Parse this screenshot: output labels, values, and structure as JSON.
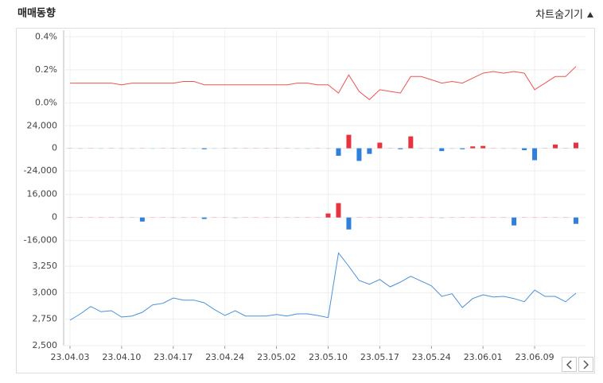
{
  "header": {
    "title": "매매동향",
    "toggle": "차트숨기기"
  },
  "chart_data": [
    {
      "type": "line",
      "color": "#ef5350",
      "values": [
        0.12,
        0.12,
        0.12,
        0.12,
        0.12,
        0.11,
        0.12,
        0.12,
        0.12,
        0.12,
        0.12,
        0.13,
        0.13,
        0.11,
        0.11,
        0.11,
        0.11,
        0.11,
        0.11,
        0.11,
        0.11,
        0.11,
        0.12,
        0.12,
        0.11,
        0.11,
        0.06,
        0.17,
        0.07,
        0.02,
        0.08,
        0.07,
        0.06,
        0.16,
        0.16,
        0.14,
        0.12,
        0.13,
        0.12,
        0.15,
        0.18,
        0.19,
        0.18,
        0.19,
        0.18,
        0.08,
        0.12,
        0.16,
        0.16,
        0.22
      ],
      "ylim": [
        -0.05,
        0.43
      ],
      "yticks": [
        {
          "value": 0.4,
          "label": "0.4%"
        },
        {
          "value": 0.2,
          "label": "0.2%"
        },
        {
          "value": 0.0,
          "label": "0.0%"
        }
      ],
      "grid": true
    },
    {
      "type": "bar",
      "positive_color": "#e8333f",
      "negative_color": "#2f7fdc",
      "values": [
        200,
        -200,
        0,
        -200,
        0,
        -200,
        -200,
        0,
        -200,
        0,
        200,
        0,
        -200,
        -1000,
        -200,
        0,
        0,
        0,
        0,
        0,
        0,
        0,
        -200,
        -200,
        0,
        -200,
        -8000,
        14400,
        -13500,
        -6000,
        6000,
        0,
        -1000,
        12700,
        -500,
        -500,
        -3000,
        -500,
        -1000,
        2000,
        2500,
        500,
        -500,
        -500,
        -2000,
        -12700,
        0,
        4000,
        0,
        6000
      ],
      "ylim": [
        -30000,
        31000
      ],
      "yticks": [
        {
          "value": 24000,
          "label": "24,000"
        },
        0,
        {
          "value": -24000,
          "label": "-24,000"
        }
      ],
      "grid": true
    },
    {
      "type": "bar",
      "positive_color": "#e8333f",
      "negative_color": "#2f7fdc",
      "values": [
        0,
        0,
        0,
        0,
        0,
        0,
        0,
        -2800,
        0,
        0,
        0,
        0,
        0,
        -1000,
        0,
        0,
        -500,
        0,
        0,
        0,
        0,
        0,
        0,
        200,
        200,
        2800,
        10000,
        -8300,
        0,
        0,
        0,
        0,
        0,
        0,
        0,
        0,
        -500,
        0,
        0,
        0,
        0,
        0,
        0,
        -5500,
        0,
        0,
        0,
        0,
        0,
        -4400
      ],
      "ylim": [
        -20000,
        23000
      ],
      "yticks": [
        {
          "value": 16000,
          "label": "16,000"
        },
        0,
        {
          "value": -16000,
          "label": "-16,000"
        }
      ],
      "grid": true
    },
    {
      "type": "line",
      "color": "#4a90d9",
      "categories": [
        "23.04.03",
        null,
        null,
        null,
        null,
        "23.04.10",
        null,
        null,
        null,
        null,
        "23.04.17",
        null,
        null,
        null,
        null,
        "23.04.24",
        null,
        null,
        null,
        null,
        "23.05.02",
        null,
        null,
        null,
        null,
        "23.05.10",
        null,
        null,
        null,
        null,
        "23.05.17",
        null,
        null,
        null,
        null,
        "23.05.24",
        null,
        null,
        null,
        null,
        "23.06.01",
        null,
        null,
        null,
        null,
        "23.06.09",
        null,
        null,
        null,
        null
      ],
      "values": [
        2740,
        2800,
        2870,
        2820,
        2830,
        2770,
        2780,
        2815,
        2885,
        2900,
        2950,
        2930,
        2930,
        2905,
        2840,
        2785,
        2830,
        2780,
        2780,
        2780,
        2795,
        2780,
        2800,
        2800,
        2785,
        2765,
        3375,
        3250,
        3115,
        3080,
        3125,
        3055,
        3100,
        3155,
        3110,
        3065,
        2965,
        2990,
        2860,
        2945,
        2980,
        2960,
        2965,
        2945,
        2915,
        3025,
        2965,
        2965,
        2915,
        2995
      ],
      "ylim": [
        2500,
        3400
      ],
      "yticks": [
        {
          "value": 3250,
          "label": "3,250"
        },
        {
          "value": 3000,
          "label": "3,000"
        },
        {
          "value": 2750,
          "label": "2,750"
        },
        {
          "value": 2500,
          "label": "2,500"
        }
      ],
      "grid": true
    }
  ]
}
